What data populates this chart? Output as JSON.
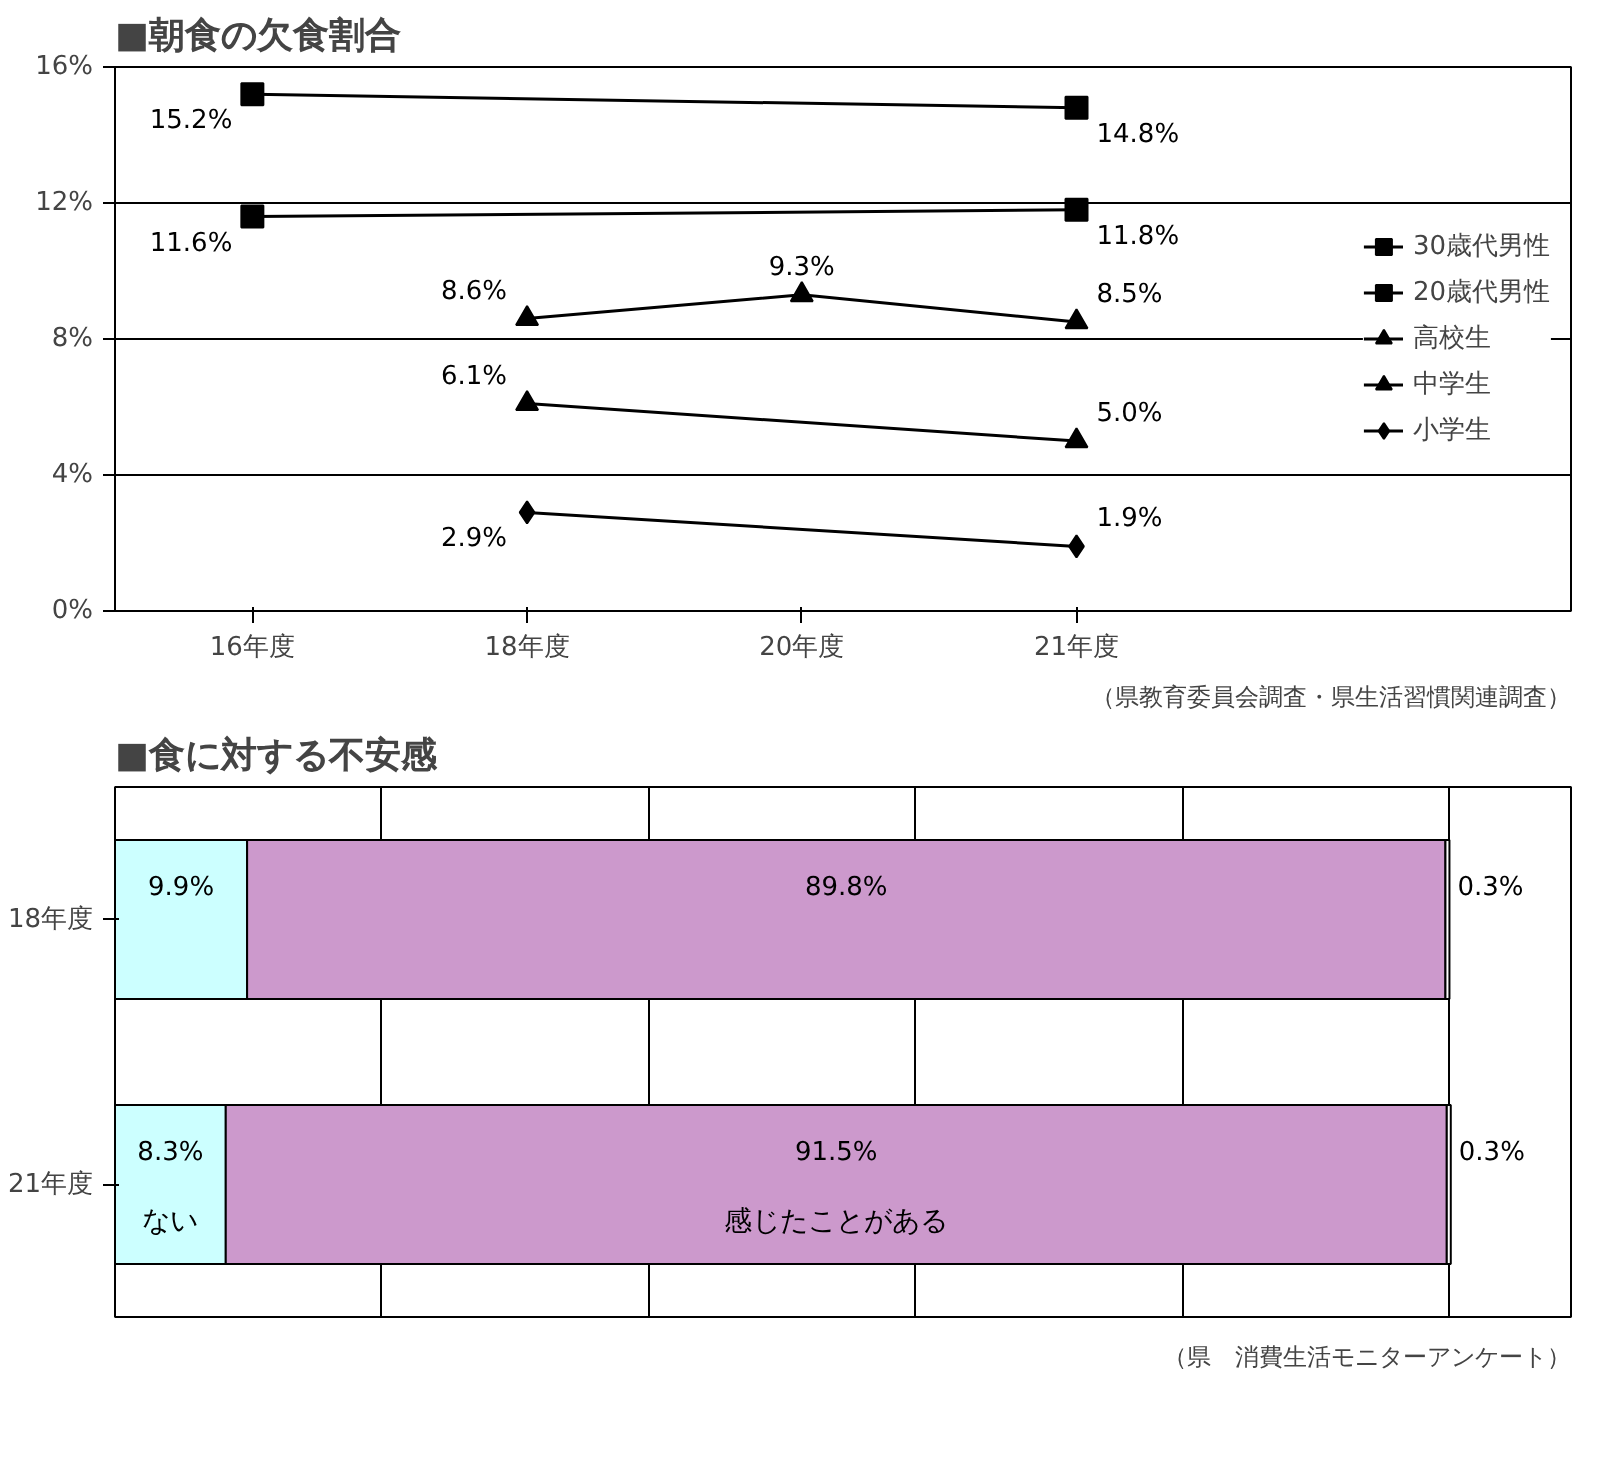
{
  "chart_data": [
    {
      "type": "line",
      "title": "■朝食の欠食割合",
      "categories": [
        "16年度",
        "18年度",
        "20年度",
        "21年度"
      ],
      "series": [
        {
          "name": "30歳代男性",
          "color": "#000000",
          "marker": "square",
          "values": [
            15.2,
            null,
            null,
            14.8
          ],
          "value_labels": [
            "15.2%",
            null,
            null,
            "14.8%"
          ]
        },
        {
          "name": "20歳代男性",
          "color": "#000000",
          "marker": "square",
          "values": [
            11.6,
            null,
            null,
            11.8
          ],
          "value_labels": [
            "11.6%",
            null,
            null,
            "11.8%"
          ]
        },
        {
          "name": "高校生",
          "color": "#000000",
          "marker": "triangle",
          "values": [
            null,
            8.6,
            9.3,
            8.5
          ],
          "value_labels": [
            null,
            "8.6%",
            "9.3%",
            "8.5%"
          ]
        },
        {
          "name": "中学生",
          "color": "#000000",
          "marker": "triangle",
          "values": [
            null,
            6.1,
            null,
            5.0
          ],
          "value_labels": [
            null,
            "6.1%",
            null,
            "5.0%"
          ]
        },
        {
          "name": "小学生",
          "color": "#000000",
          "marker": "diamond",
          "values": [
            null,
            2.9,
            null,
            1.9
          ],
          "value_labels": [
            null,
            "2.9%",
            null,
            "1.9%"
          ]
        }
      ],
      "ylim": [
        0,
        16
      ],
      "yticks": [
        {
          "value": 0,
          "label": "0%"
        },
        {
          "value": 4,
          "label": "4%"
        },
        {
          "value": 8,
          "label": "8%"
        },
        {
          "value": 12,
          "label": "12%"
        },
        {
          "value": 16,
          "label": "16%"
        }
      ],
      "grid": "y",
      "legend": "right",
      "annotations": [
        "（県教育委員会調査・県生活習慣関連調査）"
      ]
    },
    {
      "type": "bar",
      "title": "■食に対する不安感",
      "orientation": "horizontal",
      "stacked": true,
      "categories": [
        "18年度",
        "21年度"
      ],
      "series": [
        {
          "name": "ない",
          "color": "#ccffff",
          "values": [
            9.9,
            8.3
          ],
          "value_labels": [
            "9.9%",
            "8.3%"
          ]
        },
        {
          "name": "感じたことがある",
          "color": "#cc99cc",
          "values": [
            89.8,
            91.5
          ],
          "value_labels": [
            "89.8%",
            "91.5%"
          ]
        },
        {
          "color": "#ffffff",
          "values": [
            0.3,
            0.3
          ],
          "value_labels": [
            "0.3%",
            "0.3%"
          ]
        }
      ],
      "grid": "x",
      "tick_labels": "y",
      "annotations": [
        "（県　消費生活モニターアンケート）"
      ]
    }
  ]
}
